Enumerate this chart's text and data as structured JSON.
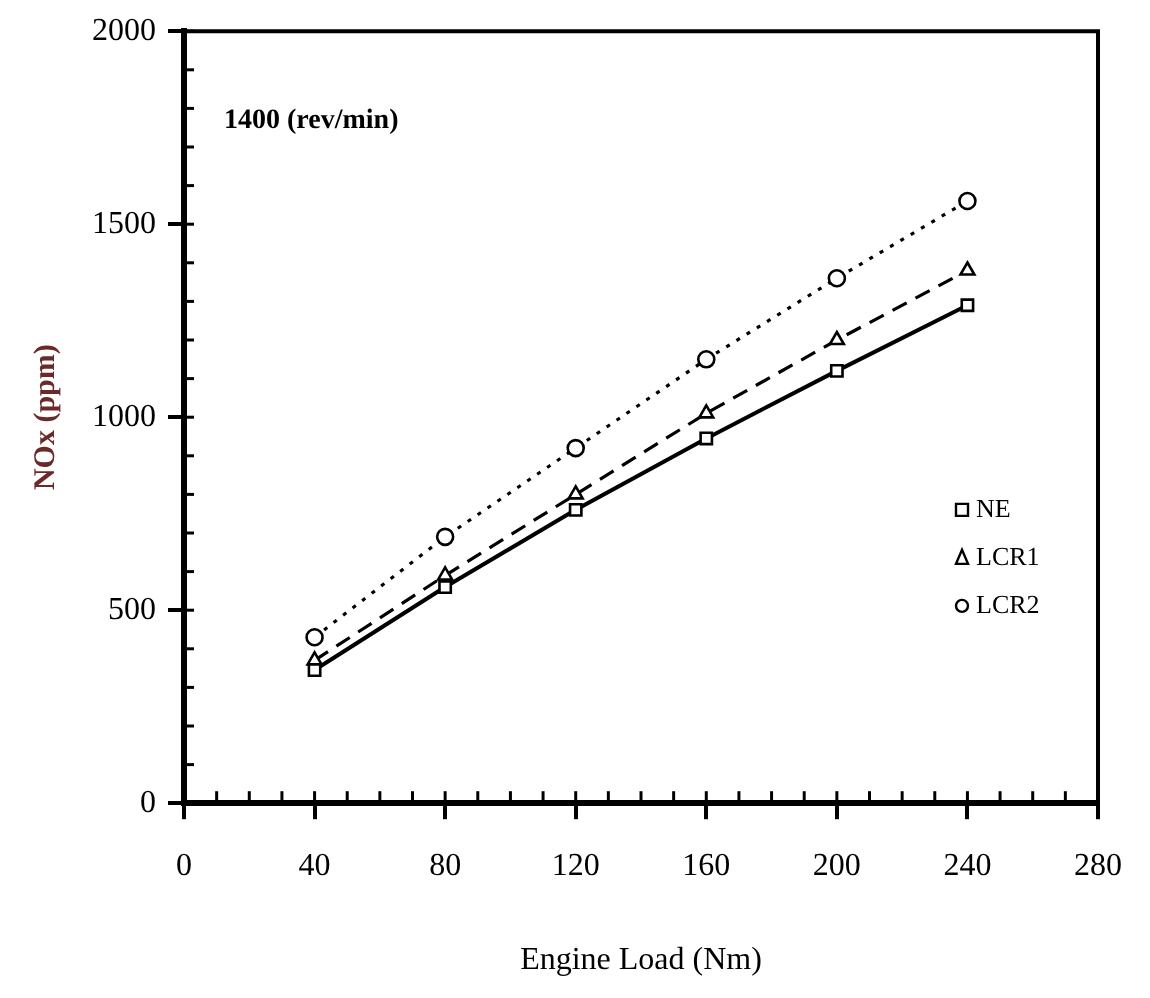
{
  "chart_data": {
    "type": "line",
    "xlabel": "Engine Load (Nm)",
    "ylabel": "NOx (ppm)",
    "annotations": [
      "1400 (rev/min)"
    ],
    "x": [
      40,
      80,
      120,
      160,
      200,
      240
    ],
    "series": [
      {
        "name": "NE",
        "color": "#000000",
        "values": [
          345,
          560,
          760,
          945,
          1120,
          1290
        ],
        "marker": "square",
        "line_style": "solid"
      },
      {
        "name": "LCR1",
        "color": "#000000",
        "values": [
          370,
          590,
          800,
          1010,
          1200,
          1380
        ],
        "marker": "triangle",
        "line_style": "dashed"
      },
      {
        "name": "LCR2",
        "color": "#000000",
        "values": [
          430,
          690,
          920,
          1150,
          1360,
          1560
        ],
        "marker": "circle",
        "line_style": "dotted"
      }
    ],
    "xlim": [
      0,
      280
    ],
    "xticks": [
      0,
      40,
      80,
      120,
      160,
      200,
      240,
      280
    ],
    "ylim": [
      0,
      2000
    ],
    "yticks": [
      0,
      500,
      1000,
      1500,
      2000
    ],
    "grid": false,
    "legend": "right"
  }
}
